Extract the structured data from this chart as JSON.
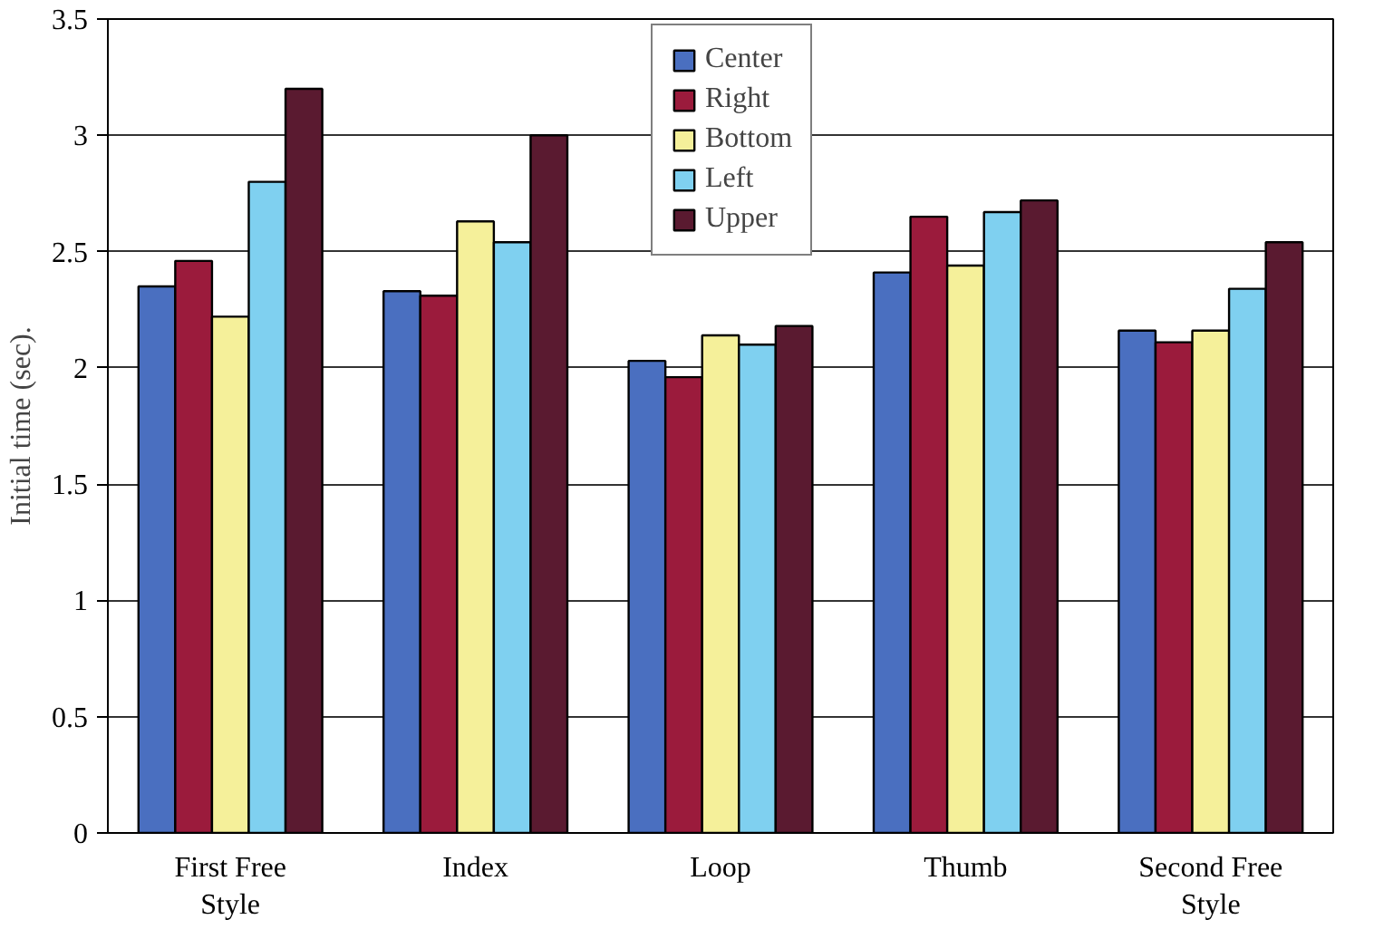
{
  "chart_data": {
    "type": "bar",
    "ylabel": "Initial time (sec).",
    "categories": [
      "First Free Style",
      "Index",
      "Loop",
      "Thumb",
      "Second Free Style"
    ],
    "series": [
      {
        "name": "Center",
        "color": "#4a6fc0",
        "values": [
          2.35,
          2.33,
          2.03,
          2.41,
          2.16
        ]
      },
      {
        "name": "Right",
        "color": "#9b1b3c",
        "values": [
          2.46,
          2.31,
          1.96,
          2.65,
          2.11
        ]
      },
      {
        "name": "Bottom",
        "color": "#f5f09a",
        "values": [
          2.22,
          2.63,
          2.14,
          2.44,
          2.16
        ]
      },
      {
        "name": "Left",
        "color": "#7fd0f0",
        "values": [
          2.8,
          2.54,
          2.1,
          2.67,
          2.34
        ]
      },
      {
        "name": "Upper",
        "color": "#5a1a30",
        "values": [
          3.2,
          3.0,
          2.18,
          2.72,
          2.54
        ]
      }
    ],
    "ylim": [
      0,
      3.5
    ],
    "yticks": [
      0,
      0.5,
      1,
      1.5,
      2,
      2.5,
      3,
      3.5
    ],
    "grid": "y",
    "legend": "top"
  }
}
